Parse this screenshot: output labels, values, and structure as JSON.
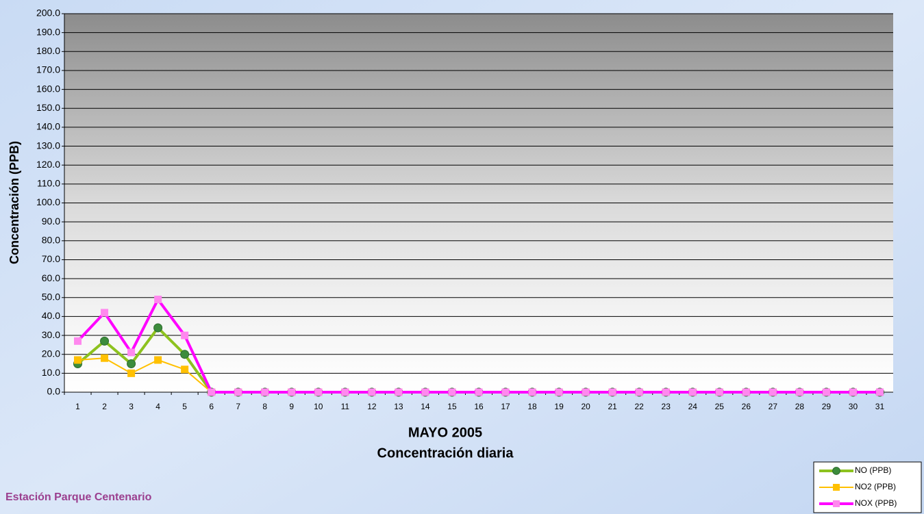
{
  "chart_data": {
    "type": "line",
    "title": "MAYO 2005",
    "subtitle": "Concentración diaria",
    "y_label": "Concentración  (PPB)",
    "annotation": "Estación Parque Centenario",
    "categories": [
      "1",
      "2",
      "3",
      "4",
      "5",
      "6",
      "7",
      "8",
      "9",
      "10",
      "11",
      "12",
      "13",
      "14",
      "15",
      "16",
      "17",
      "18",
      "19",
      "20",
      "21",
      "22",
      "23",
      "24",
      "25",
      "26",
      "27",
      "28",
      "29",
      "30",
      "31"
    ],
    "series": [
      {
        "name": "NO (PPB)",
        "color": "#8dc21f",
        "marker": "circle",
        "marker_color": "#3c8c3c",
        "values": [
          15,
          27,
          15,
          34,
          20,
          0,
          0,
          0,
          0,
          0,
          0,
          0,
          0,
          0,
          0,
          0,
          0,
          0,
          0,
          0,
          0,
          0,
          0,
          0,
          0,
          0,
          0,
          0,
          0,
          0,
          0
        ]
      },
      {
        "name": "NO2 (PPB)",
        "color": "#ffc000",
        "marker": "square",
        "marker_color": "#ffc000",
        "values": [
          17,
          18,
          10,
          17,
          12,
          0,
          0,
          0,
          0,
          0,
          0,
          0,
          0,
          0,
          0,
          0,
          0,
          0,
          0,
          0,
          0,
          0,
          0,
          0,
          0,
          0,
          0,
          0,
          0,
          0,
          0
        ]
      },
      {
        "name": "NOX (PPB)",
        "color": "#ff00ff",
        "marker": "square",
        "marker_color": "#ff88ee",
        "values": [
          27,
          42,
          21,
          49,
          30,
          0,
          0,
          0,
          0,
          0,
          0,
          0,
          0,
          0,
          0,
          0,
          0,
          0,
          0,
          0,
          0,
          0,
          0,
          0,
          0,
          0,
          0,
          0,
          0,
          0,
          0
        ]
      }
    ],
    "ylim": [
      0,
      200
    ],
    "yticks": [
      {
        "value": 0,
        "label": "0.0"
      },
      {
        "value": 10,
        "label": "10.0"
      },
      {
        "value": 20,
        "label": "20.0"
      },
      {
        "value": 30,
        "label": "30.0"
      },
      {
        "value": 40,
        "label": "40.0"
      },
      {
        "value": 50,
        "label": "50.0"
      },
      {
        "value": 60,
        "label": "60.0"
      },
      {
        "value": 70,
        "label": "70.0"
      },
      {
        "value": 80,
        "label": "80.0"
      },
      {
        "value": 90,
        "label": "90.0"
      },
      {
        "value": 100,
        "label": "100.0"
      },
      {
        "value": 110,
        "label": "110.0"
      },
      {
        "value": 120,
        "label": "120.0"
      },
      {
        "value": 130,
        "label": "130.0"
      },
      {
        "value": 140,
        "label": "140.0"
      },
      {
        "value": 150,
        "label": "150.0"
      },
      {
        "value": 160,
        "label": "160.0"
      },
      {
        "value": 170,
        "label": "170.0"
      },
      {
        "value": 180,
        "label": "180.0"
      },
      {
        "value": 190,
        "label": "190.0"
      },
      {
        "value": 200,
        "label": "200.0"
      }
    ],
    "grid": true,
    "legend": "bottom-right"
  }
}
